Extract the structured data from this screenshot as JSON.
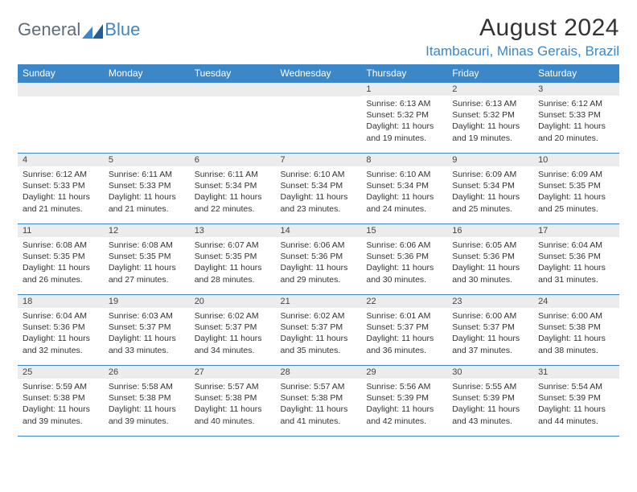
{
  "brand": {
    "word1": "General",
    "word2": "Blue"
  },
  "title": "August 2024",
  "location": "Itambacuri, Minas Gerais, Brazil",
  "colors": {
    "accent": "#3b87c8",
    "header_text": "#ffffff",
    "daynum_bg": "#ececec",
    "body_text": "#333333",
    "grid_line": "#3b87c8",
    "logo_gray": "#5f6d7a"
  },
  "typography": {
    "title_fontsize": 30,
    "location_fontsize": 17,
    "weekday_fontsize": 12,
    "daynum_fontsize": 11,
    "cell_fontsize": 10.5
  },
  "weekdays": [
    "Sunday",
    "Monday",
    "Tuesday",
    "Wednesday",
    "Thursday",
    "Friday",
    "Saturday"
  ],
  "field_labels": {
    "sunrise": "Sunrise:",
    "sunset": "Sunset:",
    "daylight": "Daylight:"
  },
  "weeks": [
    [
      null,
      null,
      null,
      null,
      {
        "n": "1",
        "sr": "6:13 AM",
        "ss": "5:32 PM",
        "dl": "11 hours and 19 minutes."
      },
      {
        "n": "2",
        "sr": "6:13 AM",
        "ss": "5:32 PM",
        "dl": "11 hours and 19 minutes."
      },
      {
        "n": "3",
        "sr": "6:12 AM",
        "ss": "5:33 PM",
        "dl": "11 hours and 20 minutes."
      }
    ],
    [
      {
        "n": "4",
        "sr": "6:12 AM",
        "ss": "5:33 PM",
        "dl": "11 hours and 21 minutes."
      },
      {
        "n": "5",
        "sr": "6:11 AM",
        "ss": "5:33 PM",
        "dl": "11 hours and 21 minutes."
      },
      {
        "n": "6",
        "sr": "6:11 AM",
        "ss": "5:34 PM",
        "dl": "11 hours and 22 minutes."
      },
      {
        "n": "7",
        "sr": "6:10 AM",
        "ss": "5:34 PM",
        "dl": "11 hours and 23 minutes."
      },
      {
        "n": "8",
        "sr": "6:10 AM",
        "ss": "5:34 PM",
        "dl": "11 hours and 24 minutes."
      },
      {
        "n": "9",
        "sr": "6:09 AM",
        "ss": "5:34 PM",
        "dl": "11 hours and 25 minutes."
      },
      {
        "n": "10",
        "sr": "6:09 AM",
        "ss": "5:35 PM",
        "dl": "11 hours and 25 minutes."
      }
    ],
    [
      {
        "n": "11",
        "sr": "6:08 AM",
        "ss": "5:35 PM",
        "dl": "11 hours and 26 minutes."
      },
      {
        "n": "12",
        "sr": "6:08 AM",
        "ss": "5:35 PM",
        "dl": "11 hours and 27 minutes."
      },
      {
        "n": "13",
        "sr": "6:07 AM",
        "ss": "5:35 PM",
        "dl": "11 hours and 28 minutes."
      },
      {
        "n": "14",
        "sr": "6:06 AM",
        "ss": "5:36 PM",
        "dl": "11 hours and 29 minutes."
      },
      {
        "n": "15",
        "sr": "6:06 AM",
        "ss": "5:36 PM",
        "dl": "11 hours and 30 minutes."
      },
      {
        "n": "16",
        "sr": "6:05 AM",
        "ss": "5:36 PM",
        "dl": "11 hours and 30 minutes."
      },
      {
        "n": "17",
        "sr": "6:04 AM",
        "ss": "5:36 PM",
        "dl": "11 hours and 31 minutes."
      }
    ],
    [
      {
        "n": "18",
        "sr": "6:04 AM",
        "ss": "5:36 PM",
        "dl": "11 hours and 32 minutes."
      },
      {
        "n": "19",
        "sr": "6:03 AM",
        "ss": "5:37 PM",
        "dl": "11 hours and 33 minutes."
      },
      {
        "n": "20",
        "sr": "6:02 AM",
        "ss": "5:37 PM",
        "dl": "11 hours and 34 minutes."
      },
      {
        "n": "21",
        "sr": "6:02 AM",
        "ss": "5:37 PM",
        "dl": "11 hours and 35 minutes."
      },
      {
        "n": "22",
        "sr": "6:01 AM",
        "ss": "5:37 PM",
        "dl": "11 hours and 36 minutes."
      },
      {
        "n": "23",
        "sr": "6:00 AM",
        "ss": "5:37 PM",
        "dl": "11 hours and 37 minutes."
      },
      {
        "n": "24",
        "sr": "6:00 AM",
        "ss": "5:38 PM",
        "dl": "11 hours and 38 minutes."
      }
    ],
    [
      {
        "n": "25",
        "sr": "5:59 AM",
        "ss": "5:38 PM",
        "dl": "11 hours and 39 minutes."
      },
      {
        "n": "26",
        "sr": "5:58 AM",
        "ss": "5:38 PM",
        "dl": "11 hours and 39 minutes."
      },
      {
        "n": "27",
        "sr": "5:57 AM",
        "ss": "5:38 PM",
        "dl": "11 hours and 40 minutes."
      },
      {
        "n": "28",
        "sr": "5:57 AM",
        "ss": "5:38 PM",
        "dl": "11 hours and 41 minutes."
      },
      {
        "n": "29",
        "sr": "5:56 AM",
        "ss": "5:39 PM",
        "dl": "11 hours and 42 minutes."
      },
      {
        "n": "30",
        "sr": "5:55 AM",
        "ss": "5:39 PM",
        "dl": "11 hours and 43 minutes."
      },
      {
        "n": "31",
        "sr": "5:54 AM",
        "ss": "5:39 PM",
        "dl": "11 hours and 44 minutes."
      }
    ]
  ]
}
